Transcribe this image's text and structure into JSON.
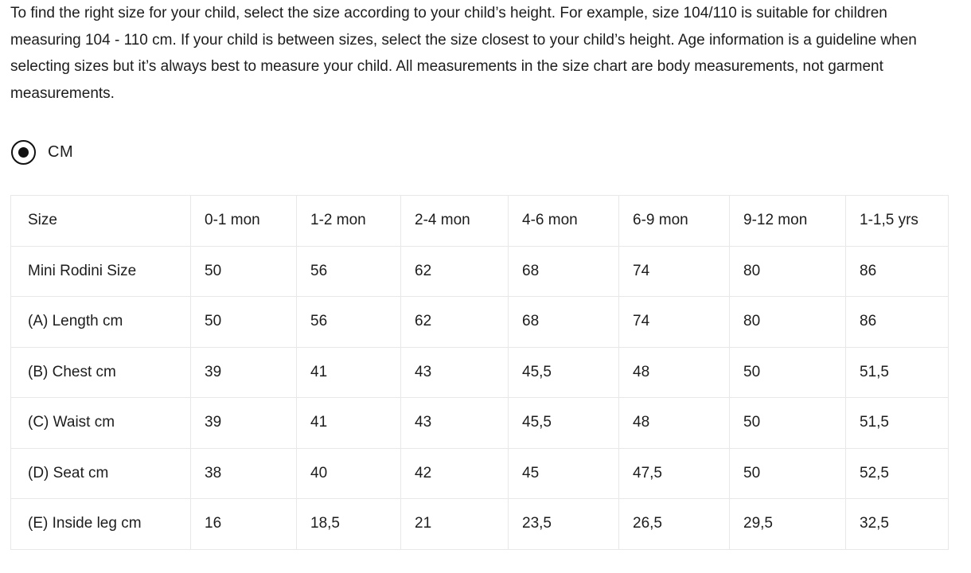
{
  "intro": {
    "text": "To find the right size for your child, select the size according to your child’s height. For example, size 104/110 is suitable for children measuring 104 - 110 cm. If your child is between sizes, select the size closest to your child’s height. Age information is a guideline when selecting sizes but it’s always best to measure your child. All measurements in the size chart are body measurements, not garment measurements."
  },
  "unit_selector": {
    "options": [
      {
        "label": "CM",
        "selected": true
      }
    ]
  },
  "size_table": {
    "columns": [
      "Size",
      "0-1 mon",
      "1-2 mon",
      "2-4 mon",
      "4-6 mon",
      "6-9 mon",
      "9-12 mon",
      "1-1,5 yrs"
    ],
    "rows": [
      {
        "label": "Mini Rodini Size",
        "values": [
          "50",
          "56",
          "62",
          "68",
          "74",
          "80",
          "86"
        ]
      },
      {
        "label": "(A) Length cm",
        "values": [
          "50",
          "56",
          "62",
          "68",
          "74",
          "80",
          "86"
        ]
      },
      {
        "label": "(B) Chest cm",
        "values": [
          "39",
          "41",
          "43",
          "45,5",
          "48",
          "50",
          "51,5"
        ]
      },
      {
        "label": "(C) Waist cm",
        "values": [
          "39",
          "41",
          "43",
          "45,5",
          "48",
          "50",
          "51,5"
        ]
      },
      {
        "label": "(D) Seat cm",
        "values": [
          "38",
          "40",
          "42",
          "45",
          "47,5",
          "50",
          "52,5"
        ]
      },
      {
        "label": "(E) Inside leg cm",
        "values": [
          "16",
          "18,5",
          "21",
          "23,5",
          "26,5",
          "29,5",
          "32,5"
        ]
      }
    ]
  },
  "colors": {
    "text": "#1d1d1d",
    "table_border": "#e8e8e8",
    "radio": "#111111",
    "background": "#ffffff"
  }
}
